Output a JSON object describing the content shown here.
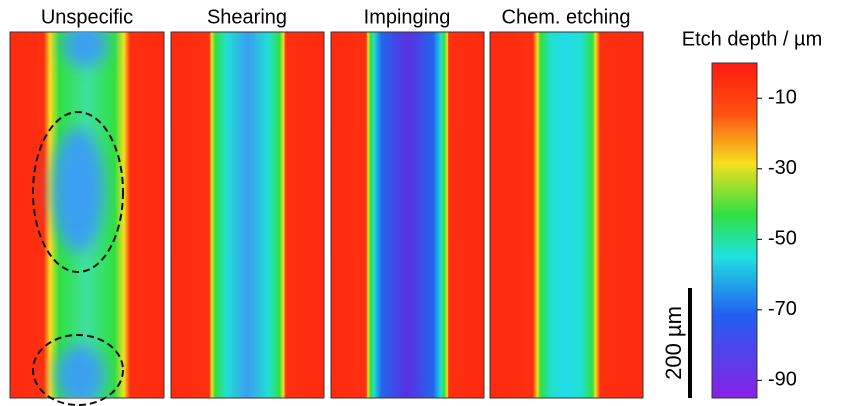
{
  "panels": [
    {
      "title": "Unspecific"
    },
    {
      "title": "Shearing"
    },
    {
      "title": "Impinging"
    },
    {
      "title": "Chem. etching"
    }
  ],
  "colorbar": {
    "title": "Etch depth / µm",
    "lim": [
      0,
      -95
    ],
    "ticks": [
      -10,
      -30,
      -50,
      -70,
      -90
    ]
  },
  "scale_bar": {
    "label": "200 µm"
  }
}
